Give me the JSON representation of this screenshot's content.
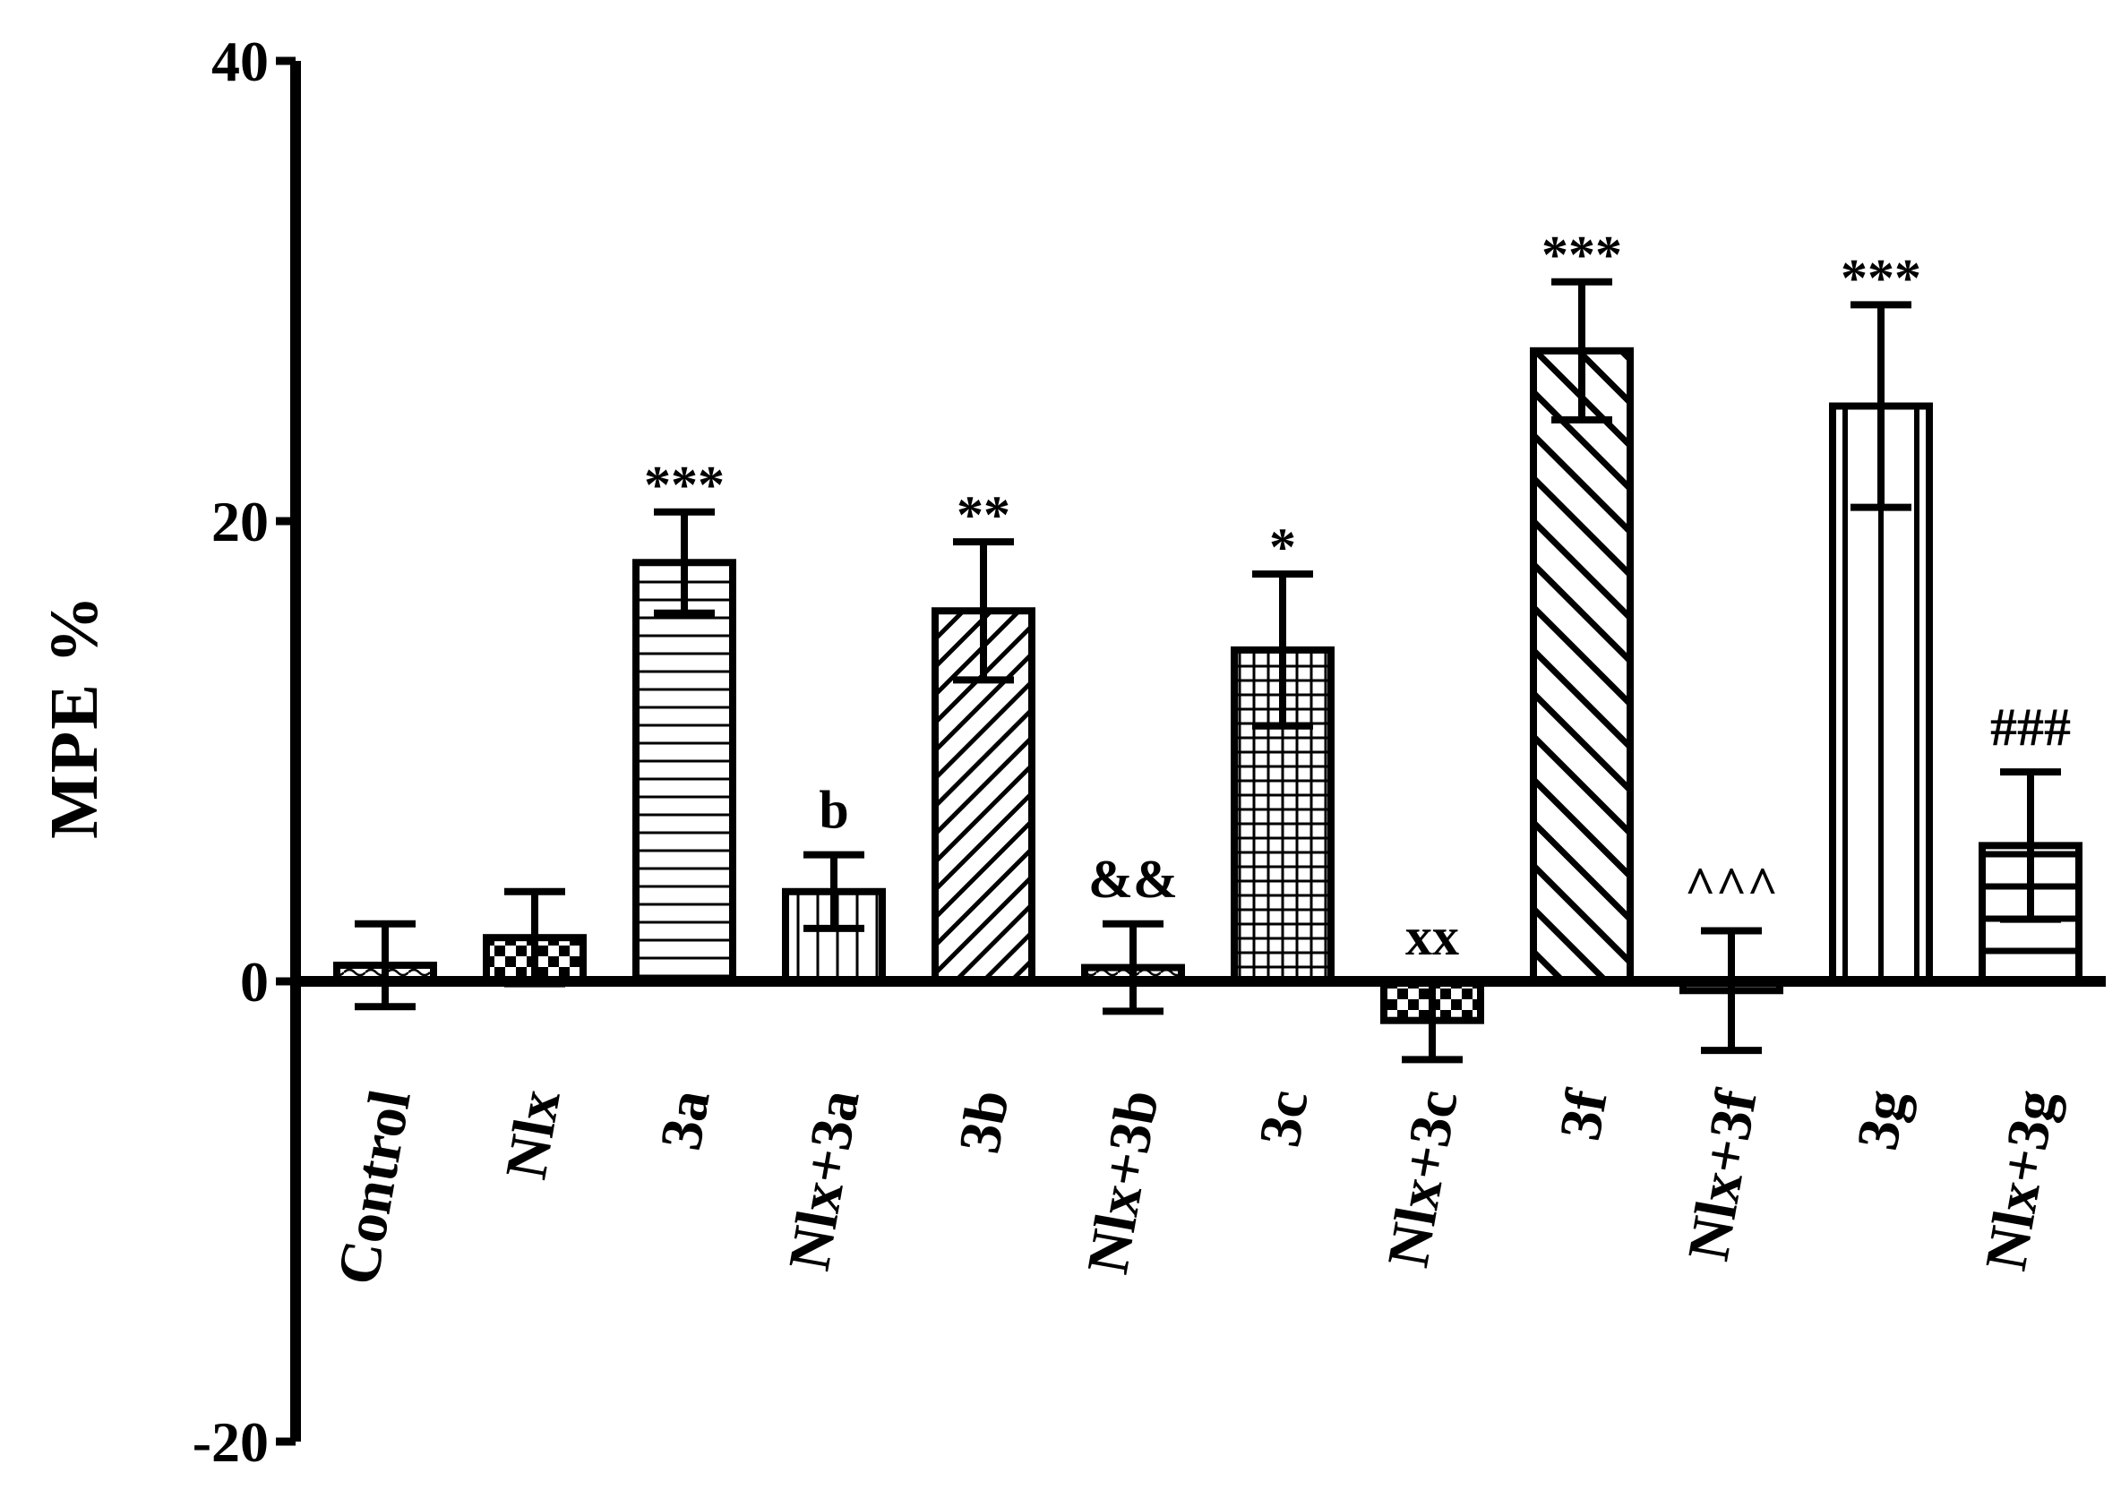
{
  "chart_data": {
    "type": "bar",
    "ylabel": "MPE %",
    "ylim": [
      -20,
      40
    ],
    "yticks": [
      -20,
      0,
      20,
      40
    ],
    "grid": false,
    "legend": "none",
    "categories": [
      "Control",
      "Nlx",
      "3a",
      "Nlx+3a",
      "3b",
      "Nlx+3b",
      "3c",
      "Nlx+3c",
      "3f",
      "Nlx+3f",
      "3g",
      "Nlx+3g"
    ],
    "values": [
      0.7,
      1.9,
      18.2,
      3.9,
      16.1,
      0.6,
      14.4,
      -1.7,
      27.4,
      -0.4,
      25.0,
      5.9
    ],
    "errors": [
      1.8,
      2.0,
      2.2,
      1.6,
      3.0,
      1.9,
      3.3,
      1.7,
      3.0,
      2.6,
      4.4,
      3.2
    ],
    "annotations": [
      "",
      "",
      "***",
      "b",
      "**",
      "&&",
      "*",
      "xx",
      "***",
      "^^^",
      "***",
      "###"
    ],
    "patterns": [
      "wavy",
      "checker",
      "horizontal",
      "vertical",
      "diagonal",
      "wavy",
      "grid",
      "checker",
      "diagonal-back",
      "hatch",
      "vertical-wide",
      "horizontal-wide"
    ],
    "colors": {
      "ink": "#000000",
      "bar_fill": "#ffffff"
    }
  }
}
